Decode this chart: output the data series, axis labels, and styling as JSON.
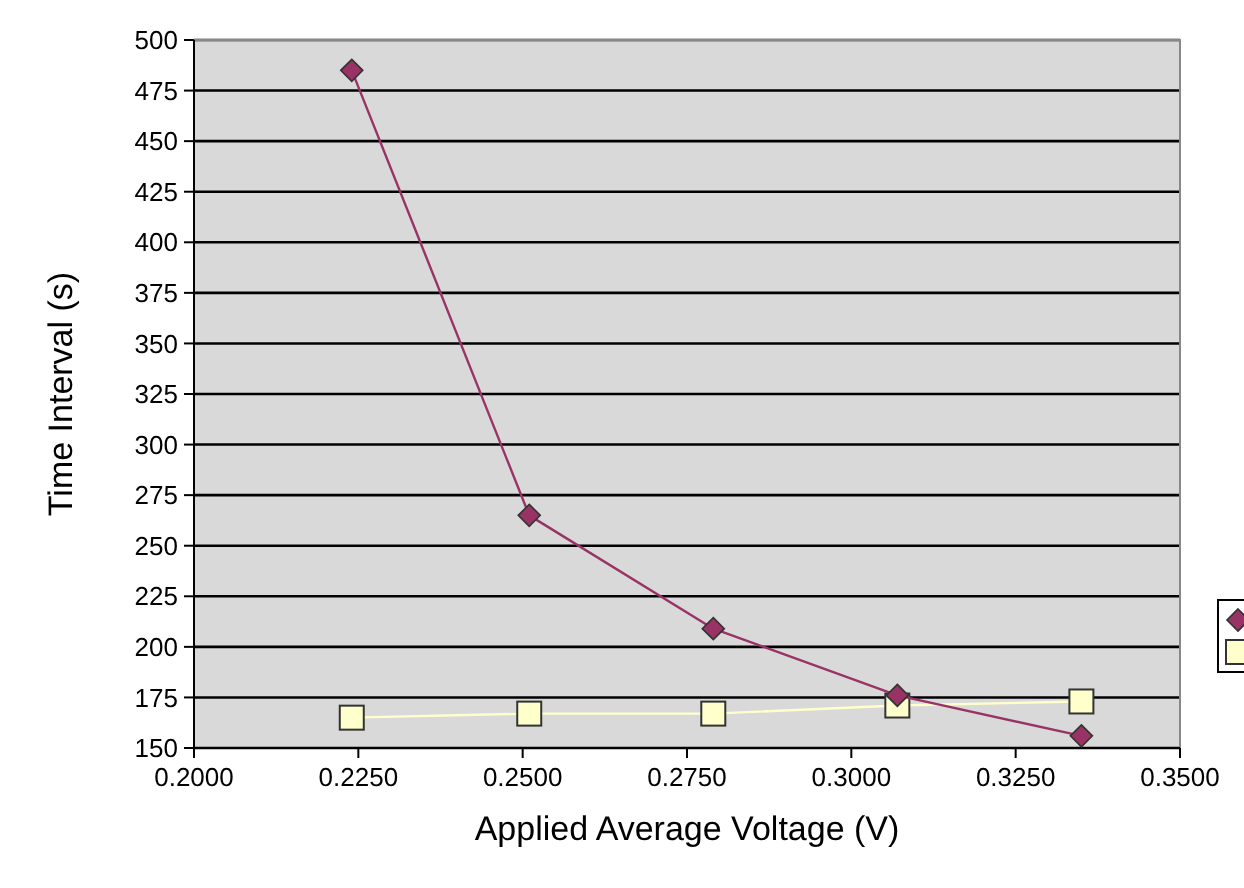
{
  "chart_data": {
    "type": "line",
    "xlabel": "Applied Average Voltage (V)",
    "ylabel": "Time Interval (s)",
    "x": [
      0.224,
      0.251,
      0.279,
      0.307,
      0.335
    ],
    "series": [
      {
        "color": "#993366",
        "values": [
          485,
          265,
          209,
          176,
          156
        ],
        "marker": "diamond"
      },
      {
        "color": "#ffffcc",
        "values": [
          165,
          167,
          167,
          171,
          173
        ],
        "marker": "square"
      }
    ],
    "xlim": [
      0.2,
      0.35
    ],
    "xticks": [
      {
        "value": 0.2,
        "label": "0.2000"
      },
      {
        "value": 0.225,
        "label": "0.2250"
      },
      {
        "value": 0.25,
        "label": "0.2500"
      },
      {
        "value": 0.275,
        "label": "0.2750"
      },
      {
        "value": 0.3,
        "label": "0.3000"
      },
      {
        "value": 0.325,
        "label": "0.3250"
      },
      {
        "value": 0.35,
        "label": "0.3500"
      }
    ],
    "ylim": [
      150,
      500
    ],
    "yticks": [
      150,
      175,
      200,
      225,
      250,
      275,
      300,
      325,
      350,
      375,
      400,
      425,
      450,
      475,
      500
    ],
    "grid": "y",
    "line_style": "solid"
  }
}
